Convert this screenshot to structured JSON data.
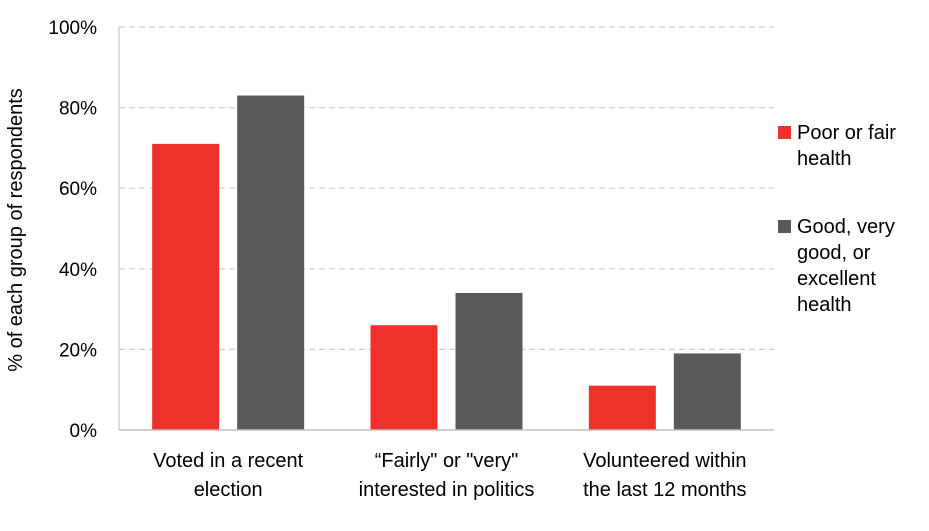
{
  "chart_data": {
    "type": "bar",
    "title": "",
    "xlabel": "",
    "ylabel": "% of each group of respondents",
    "ylim": [
      0,
      100
    ],
    "yticks": [
      "0%",
      "20%",
      "40%",
      "60%",
      "80%",
      "100%"
    ],
    "ytick_values": [
      0,
      20,
      40,
      60,
      80,
      100
    ],
    "categories": [
      [
        "Voted in a recent",
        "election"
      ],
      [
        "“Fairly\" or \"very\"",
        "interested in politics"
      ],
      [
        "Volunteered within",
        "the last 12 months"
      ]
    ],
    "series": [
      {
        "name": "Poor or fair health",
        "legend_lines": [
          "Poor or fair",
          "health"
        ],
        "color": "#ee322b",
        "values": [
          71,
          26,
          11
        ]
      },
      {
        "name": "Good, very good, or excellent health",
        "legend_lines": [
          "Good, very",
          "good, or",
          "excellent",
          "health"
        ],
        "color": "#595959",
        "values": [
          83,
          34,
          19
        ]
      }
    ],
    "grid": true,
    "legend_position": "right"
  }
}
